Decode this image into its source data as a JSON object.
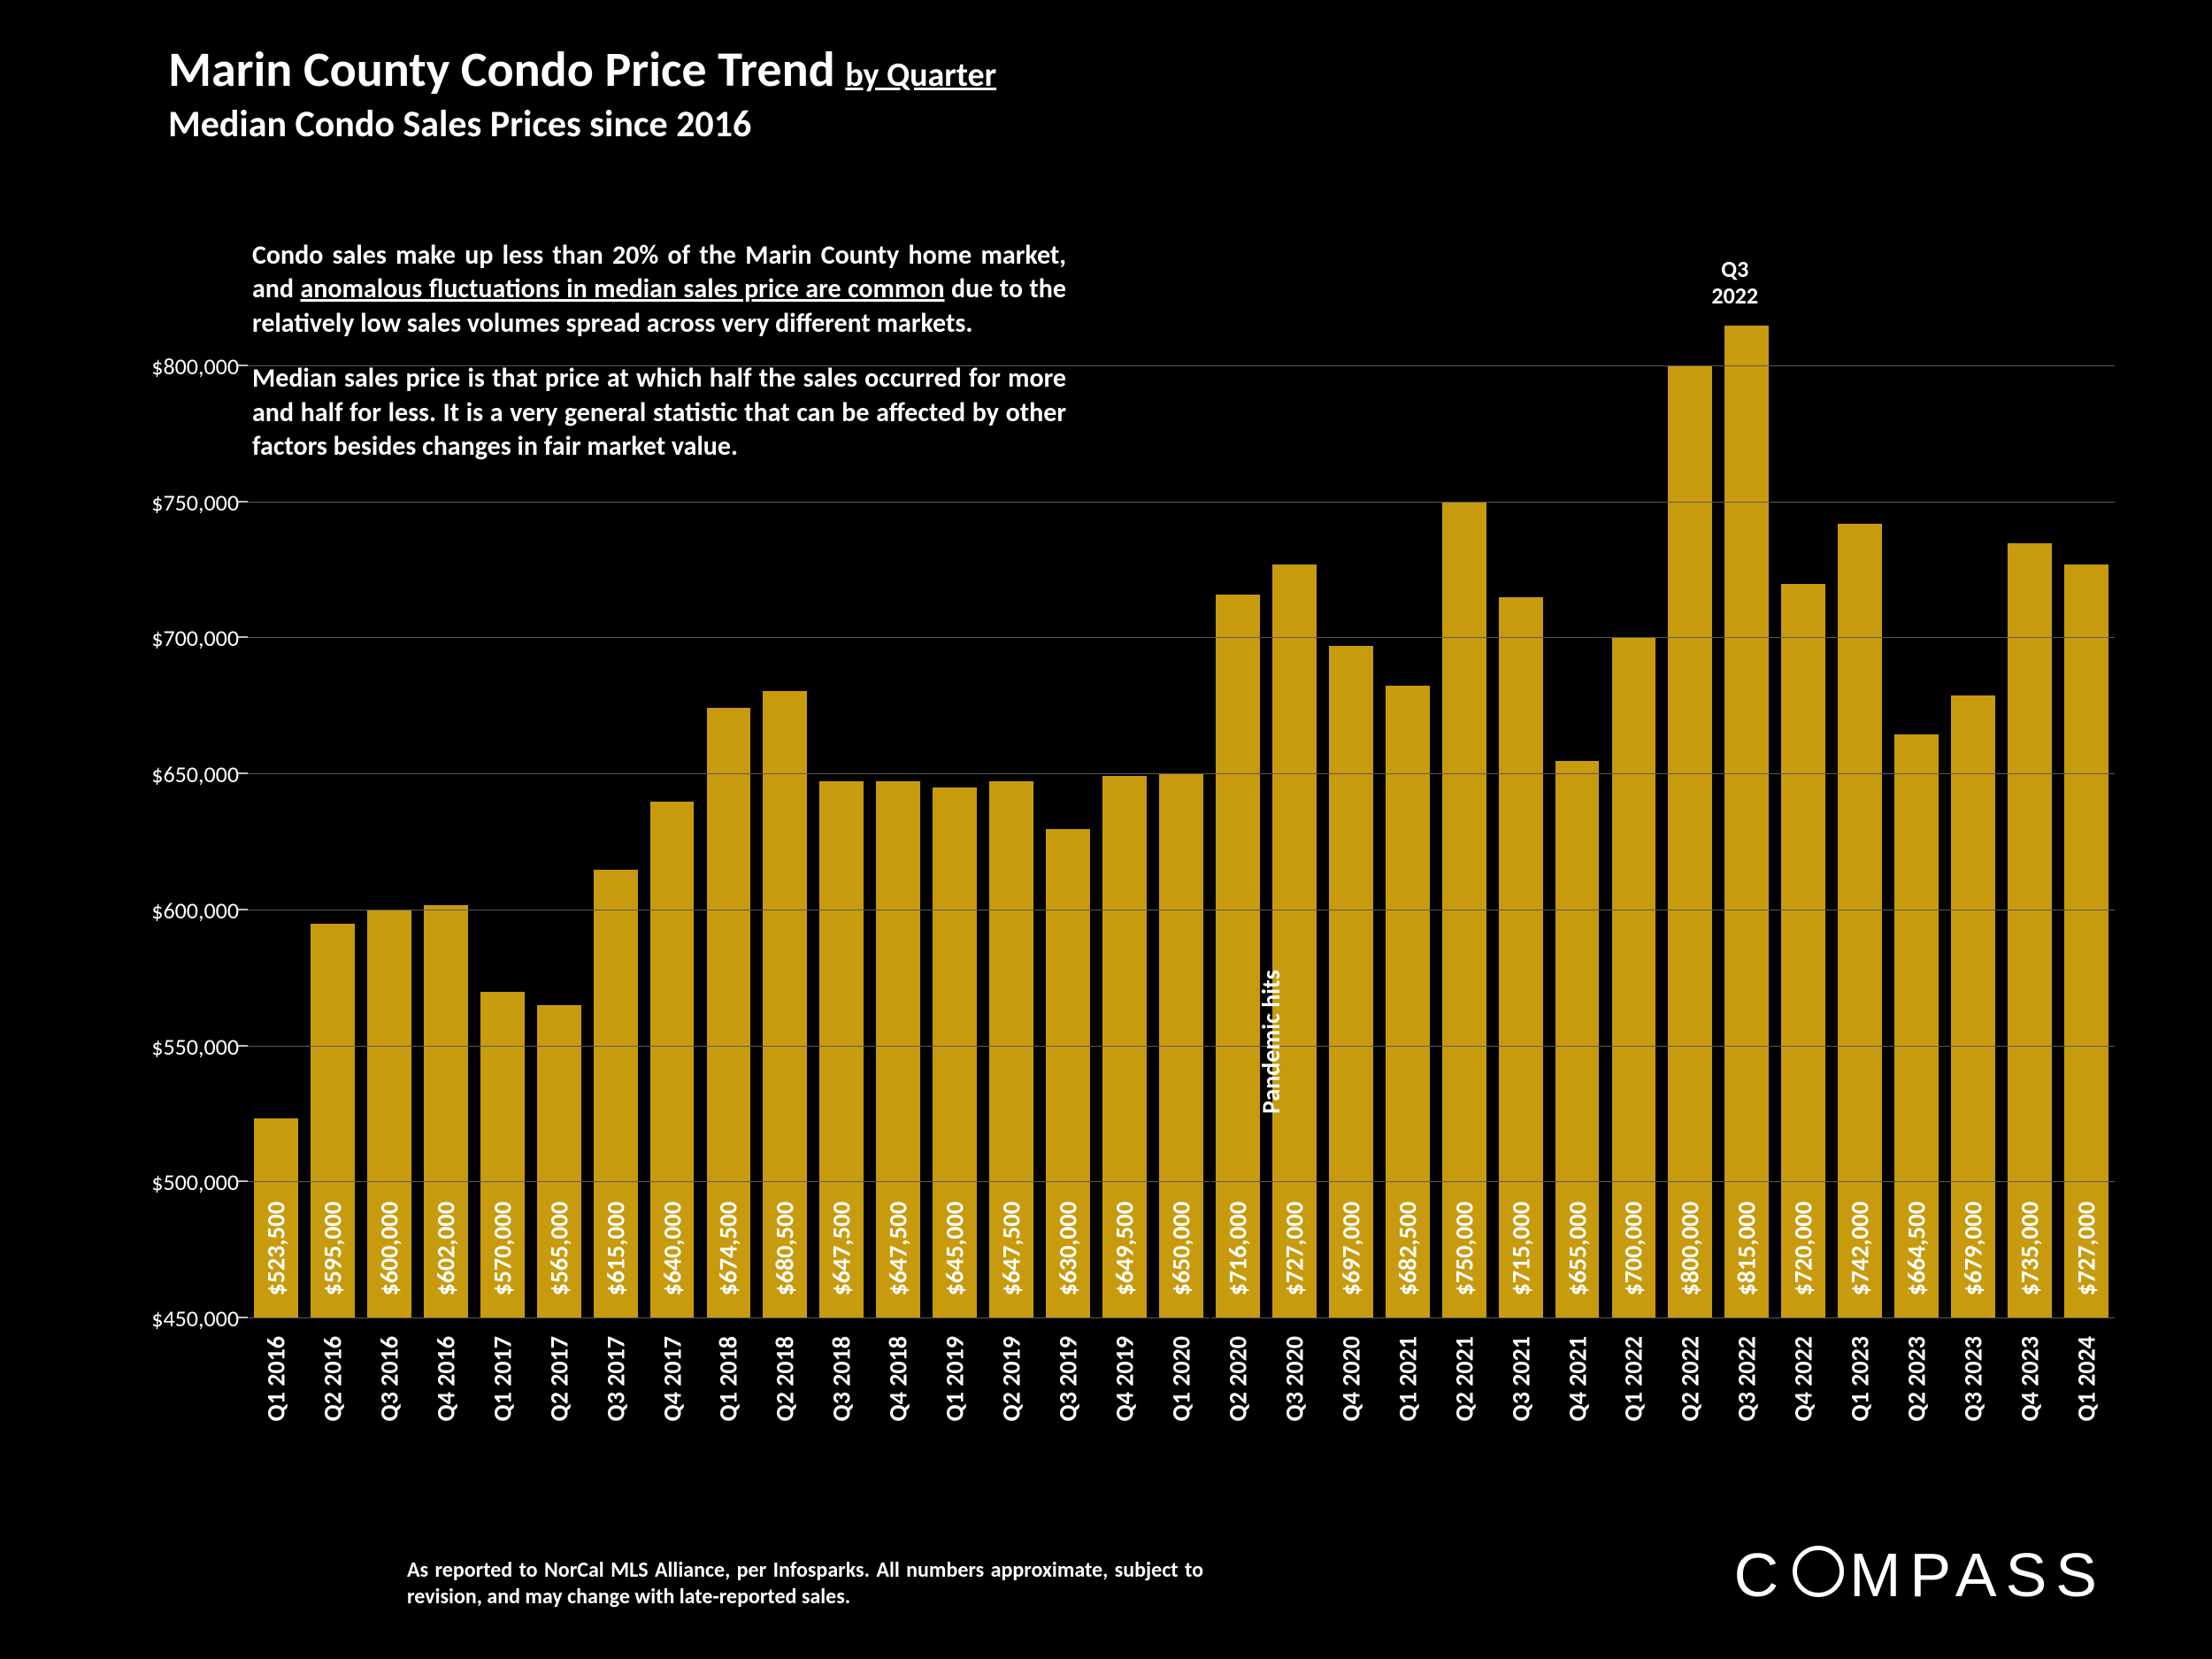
{
  "title": {
    "main": "Marin County Condo Price Trend",
    "qualifier": "by Quarter",
    "subtitle": "Median Condo Sales Prices since 2016",
    "main_fontsize": 56,
    "qualifier_fontsize": 38,
    "subtitle_fontsize": 42,
    "color": "#ffffff"
  },
  "description": {
    "para1_pre": "Condo sales make up less than 20% of the Marin County home market, and ",
    "para1_underline": "anomalous fluctuations in median sales price are common",
    "para1_post": " due to the relatively low sales volumes spread across very different markets.",
    "para2": "Median sales price is that price at which half the sales occurred for more and half for less. It is a very general statistic that can be affected by other factors besides changes in fair market value.",
    "fontsize": 30
  },
  "chart": {
    "type": "bar",
    "background_color": "#000000",
    "bar_color": "#c89b0f",
    "grid_color": "#595959",
    "text_color": "#ffffff",
    "bar_width_ratio": 0.78,
    "ylim": [
      450000,
      850000
    ],
    "ytick_step": 50000,
    "yticks": [
      450000,
      500000,
      550000,
      600000,
      650000,
      700000,
      750000,
      800000
    ],
    "ytick_labels": [
      "$450,000",
      "$500,000",
      "$550,000",
      "$600,000",
      "$650,000",
      "$700,000",
      "$750,000",
      "$800,000"
    ],
    "ytick_fontsize": 26,
    "bar_label_fontsize": 28,
    "xlabel_fontsize": 28,
    "categories": [
      "Q1 2016",
      "Q2 2016",
      "Q3 2016",
      "Q4 2016",
      "Q1 2017",
      "Q2 2017",
      "Q3 2017",
      "Q4 2017",
      "Q1 2018",
      "Q2 2018",
      "Q3 2018",
      "Q4 2018",
      "Q1 2019",
      "Q2 2019",
      "Q3 2019",
      "Q4 2019",
      "Q1 2020",
      "Q2 2020",
      "Q3 2020",
      "Q4 2020",
      "Q1 2021",
      "Q2 2021",
      "Q3 2021",
      "Q4 2021",
      "Q1 2022",
      "Q2 2022",
      "Q3 2022",
      "Q4 2022",
      "Q1 2023",
      "Q2 2023",
      "Q3 2023",
      "Q4 2023",
      "Q1 2024"
    ],
    "values": [
      523500,
      595000,
      600000,
      602000,
      570000,
      565000,
      615000,
      640000,
      674500,
      680500,
      647500,
      647500,
      645000,
      647500,
      630000,
      649500,
      650000,
      716000,
      727000,
      697000,
      682500,
      750000,
      715000,
      655000,
      700000,
      800000,
      815000,
      720000,
      742000,
      664500,
      679000,
      735000,
      727000
    ],
    "value_labels": [
      "$523,500",
      "$595,000",
      "$600,000",
      "$602,000",
      "$570,000",
      "$565,000",
      "$615,000",
      "$640,000",
      "$674,500",
      "$680,500",
      "$647,500",
      "$647,500",
      "$645,000",
      "$647,500",
      "$630,000",
      "$649,500",
      "$650,000",
      "$716,000",
      "$727,000",
      "$697,000",
      "$682,500",
      "$750,000",
      "$715,000",
      "$655,000",
      "$700,000",
      "$800,000",
      "$815,000",
      "$720,000",
      "$742,000",
      "$664,500",
      "$679,000",
      "$735,000",
      "$727,000"
    ],
    "annotation": {
      "label": "Q3\n2022",
      "category_index": 26,
      "fontsize": 26
    },
    "pandemic_marker": {
      "label": "Pandemic hits",
      "between_indices": [
        16,
        17
      ],
      "fontsize": 28
    }
  },
  "footer": {
    "note": "As reported to NorCal MLS Alliance, per Infosparks. All numbers approximate, subject to revision, and may change with late-reported sales.",
    "fontsize": 24
  },
  "logo": {
    "text_before": "C",
    "text_after": "MPASS",
    "fontsize": 70,
    "letterspacing": 10
  }
}
